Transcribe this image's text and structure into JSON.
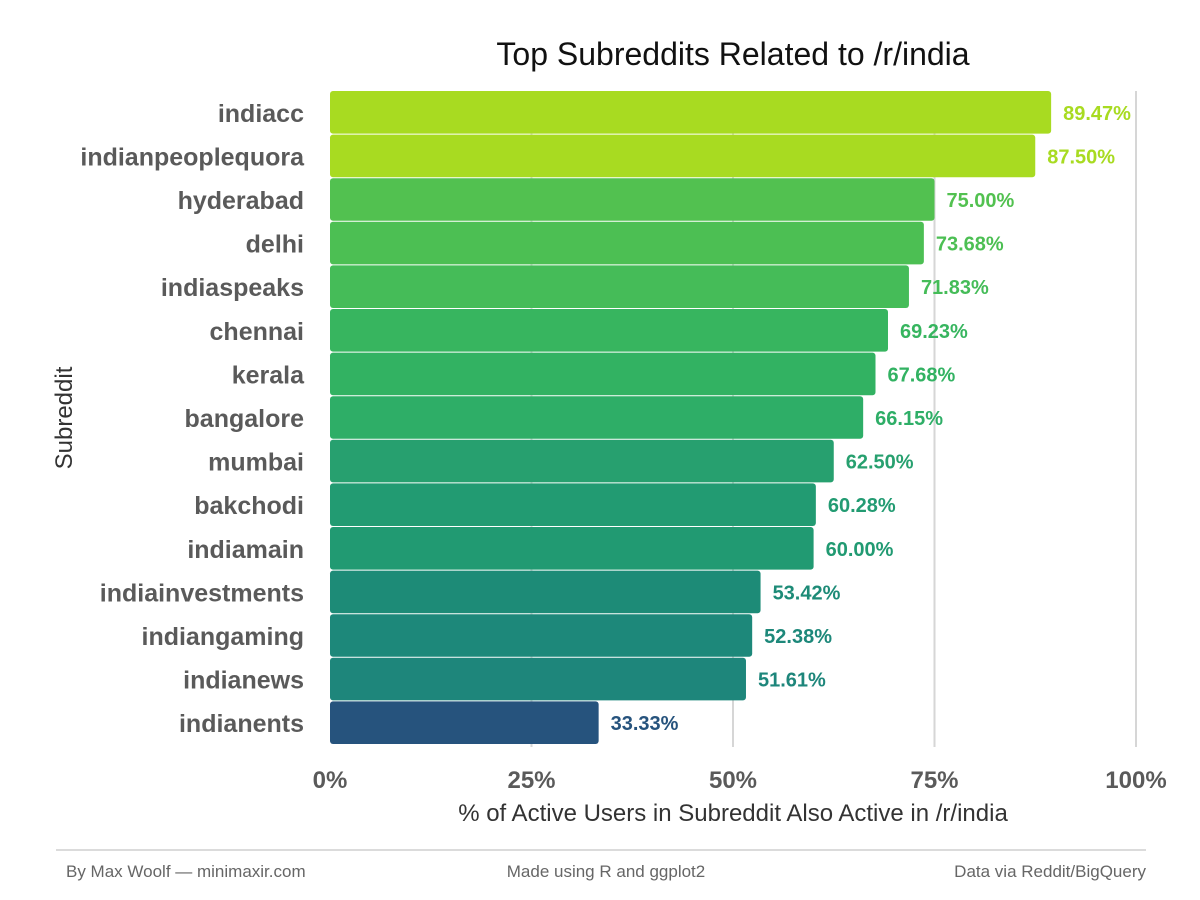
{
  "chart_data": {
    "type": "bar",
    "orientation": "horizontal",
    "title": "Top Subreddits Related to /r/india",
    "xlabel": "% of Active Users in Subreddit Also Active in /r/india",
    "ylabel": "Subreddit",
    "xlim": [
      0,
      100
    ],
    "x_ticks": [
      0,
      25,
      50,
      75,
      100
    ],
    "x_tick_labels": [
      "0%",
      "25%",
      "50%",
      "75%",
      "100%"
    ],
    "grid": "vertical major lines",
    "legend": "none",
    "categories": [
      "indiacc",
      "indianpeoplequora",
      "hyderabad",
      "delhi",
      "indiaspeaks",
      "chennai",
      "kerala",
      "bangalore",
      "mumbai",
      "bakchodi",
      "indiamain",
      "indiainvestments",
      "indiangaming",
      "indianews",
      "indianents"
    ],
    "values": [
      89.47,
      87.5,
      75.0,
      73.68,
      71.83,
      69.23,
      67.68,
      66.15,
      62.5,
      60.28,
      60.0,
      53.42,
      52.38,
      51.61,
      33.33
    ],
    "value_labels": [
      "89.47%",
      "87.50%",
      "75.00%",
      "73.68%",
      "71.83%",
      "69.23%",
      "67.68%",
      "66.15%",
      "62.50%",
      "60.28%",
      "60.00%",
      "53.42%",
      "52.38%",
      "51.61%",
      "33.33%"
    ],
    "colors": [
      "#a8db21",
      "#a8db21",
      "#52c150",
      "#4cbf53",
      "#45bc58",
      "#37b55f",
      "#32b262",
      "#2eae67",
      "#27a06f",
      "#229b72",
      "#219a72",
      "#1d8b77",
      "#1d887a",
      "#1e867b",
      "#26537d"
    ]
  },
  "footer": {
    "left": "By Max Woolf — minimaxir.com",
    "center": "Made using R and ggplot2",
    "right": "Data via Reddit/BigQuery"
  }
}
